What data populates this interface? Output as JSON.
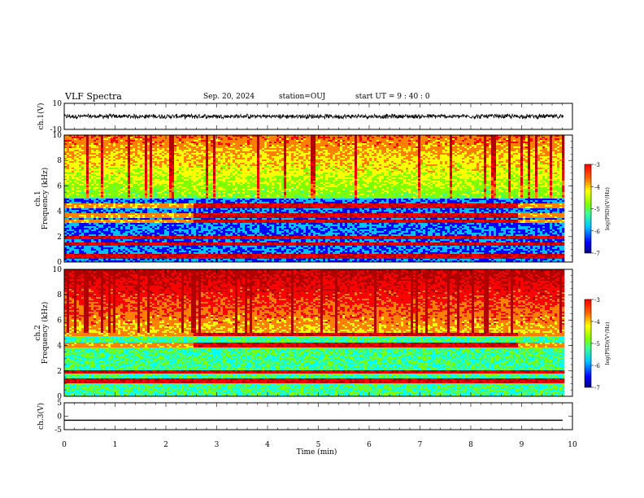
{
  "header": {
    "title": "VLF Spectra",
    "date": "Sep. 20, 2024",
    "station": "station=OUJ",
    "start": "start  UT =   9 : 40 : 0"
  },
  "colors": {
    "spectrogram_scale": [
      "#000080",
      "#0000ff",
      "#00c0ff",
      "#00ffff",
      "#40ff80",
      "#80ff00",
      "#ffff00",
      "#ff8000",
      "#ff0000",
      "#b00000"
    ],
    "trace": "#000000",
    "axis": "#000000"
  },
  "chart_data": [
    {
      "type": "line",
      "name": "ch1-waveform",
      "ylabel": "ch.1(V)",
      "ylim": [
        -10,
        10
      ],
      "y_ticks": [
        "10",
        "-10"
      ],
      "x_range_min": [
        0,
        9.83
      ],
      "approx_level": 0,
      "approx_amplitude": 1.5
    },
    {
      "type": "heatmap",
      "name": "ch1-spectrogram",
      "ylabel": "ch.1\nFrequency  (kHz)",
      "ylim": [
        0,
        10
      ],
      "y_ticks": [
        "0",
        "2",
        "4",
        "6",
        "8",
        "10"
      ],
      "x_range_min": [
        0,
        9.83
      ],
      "colorbar": {
        "label": "log(PSD)(V²/Hz)",
        "range": [
          -7,
          -3
        ],
        "ticks": [
          "-3",
          "-4",
          "-5",
          "-6",
          "-7"
        ]
      },
      "features": {
        "noise_floor_top_khz": 5,
        "hiss_band_khz": [
          5,
          10
        ],
        "emission_lines_khz": [
          4.5,
          3.7,
          3.3,
          2.0,
          1.5,
          0.5
        ],
        "enhanced_emission_interval_min": [
          2.5,
          8.9
        ]
      }
    },
    {
      "type": "heatmap",
      "name": "ch2-spectrogram",
      "ylabel": "ch.2\nFrequency  (kHz)",
      "ylim": [
        0,
        10
      ],
      "y_ticks": [
        "0",
        "2",
        "4",
        "6",
        "8",
        "10"
      ],
      "x_range_min": [
        0,
        9.83
      ],
      "colorbar": {
        "label": "log(PSD)(V²/Hz)",
        "range": [
          -7,
          -3
        ],
        "ticks": [
          "-3",
          "-4",
          "-5",
          "-6",
          "-7"
        ]
      },
      "features": {
        "noise_floor_top_khz": 5,
        "hiss_band_khz": [
          5,
          10
        ],
        "emission_lines_khz": [
          4.9,
          4.1,
          2.0,
          1.3
        ],
        "enhanced_emission_interval_min": [
          2.5,
          8.9
        ]
      }
    },
    {
      "type": "line",
      "name": "ch3-level",
      "ylabel": "ch.3(V)",
      "ylim": [
        -5,
        5
      ],
      "y_ticks": [
        "5",
        "0",
        "-5"
      ],
      "x_range_min": [
        0,
        9.83
      ],
      "constant_value": -1.5
    }
  ],
  "x_axis": {
    "label": "Time  (min)",
    "ticks": [
      "0",
      "1",
      "2",
      "3",
      "4",
      "5",
      "6",
      "7",
      "8",
      "9",
      "10"
    ],
    "range": [
      0,
      10
    ]
  }
}
